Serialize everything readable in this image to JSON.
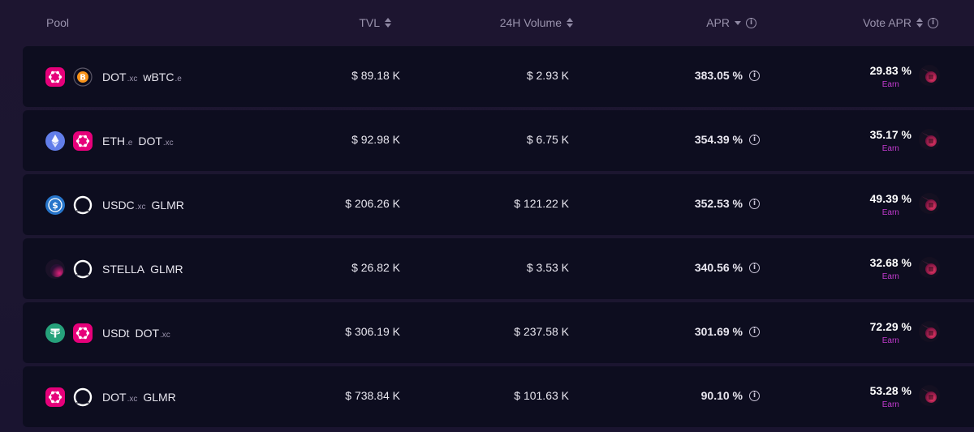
{
  "header": {
    "pool": "Pool",
    "tvl": "TVL",
    "volume": "24H Volume",
    "apr": "APR",
    "vote_apr": "Vote APR"
  },
  "colors": {
    "dot": "#e6007a",
    "btc": "#f7931a",
    "eth": "#627eea",
    "usdc": "#2775ca",
    "usdt": "#26a17b",
    "earn": "#c43bd0"
  },
  "rows": [
    {
      "tokens": [
        {
          "icon": "polkadot-icon",
          "name": "DOT",
          "suffix": ".xc"
        },
        {
          "icon": "bitcoin-icon",
          "name": "wBTC",
          "suffix": ".e"
        }
      ],
      "tvl": "$ 89.18 K",
      "volume": "$ 2.93 K",
      "apr": "383.05 %",
      "vote_apr": "29.83 %",
      "earn": "Earn"
    },
    {
      "tokens": [
        {
          "icon": "ethereum-icon",
          "name": "ETH",
          "suffix": ".e"
        },
        {
          "icon": "polkadot-icon",
          "name": "DOT",
          "suffix": ".xc"
        }
      ],
      "tvl": "$ 92.98 K",
      "volume": "$ 6.75 K",
      "apr": "354.39 %",
      "vote_apr": "35.17 %",
      "earn": "Earn"
    },
    {
      "tokens": [
        {
          "icon": "usdc-icon",
          "name": "USDC",
          "suffix": ".xc"
        },
        {
          "icon": "glmr-icon",
          "name": "GLMR",
          "suffix": ""
        }
      ],
      "tvl": "$ 206.26 K",
      "volume": "$ 121.22 K",
      "apr": "352.53 %",
      "vote_apr": "49.39 %",
      "earn": "Earn"
    },
    {
      "tokens": [
        {
          "icon": "stella-icon",
          "name": "STELLA",
          "suffix": ""
        },
        {
          "icon": "glmr-icon",
          "name": "GLMR",
          "suffix": ""
        }
      ],
      "tvl": "$ 26.82 K",
      "volume": "$ 3.53 K",
      "apr": "340.56 %",
      "vote_apr": "32.68 %",
      "earn": "Earn"
    },
    {
      "tokens": [
        {
          "icon": "tether-icon",
          "name": "USDt",
          "suffix": ""
        },
        {
          "icon": "polkadot-icon",
          "name": "DOT",
          "suffix": ".xc"
        }
      ],
      "tvl": "$ 306.19 K",
      "volume": "$ 237.58 K",
      "apr": "301.69 %",
      "vote_apr": "72.29 %",
      "earn": "Earn"
    },
    {
      "tokens": [
        {
          "icon": "polkadot-icon",
          "name": "DOT",
          "suffix": ".xc"
        },
        {
          "icon": "glmr-icon",
          "name": "GLMR",
          "suffix": ""
        }
      ],
      "tvl": "$ 738.84 K",
      "volume": "$ 101.63 K",
      "apr": "90.10 %",
      "vote_apr": "53.28 %",
      "earn": "Earn"
    }
  ]
}
